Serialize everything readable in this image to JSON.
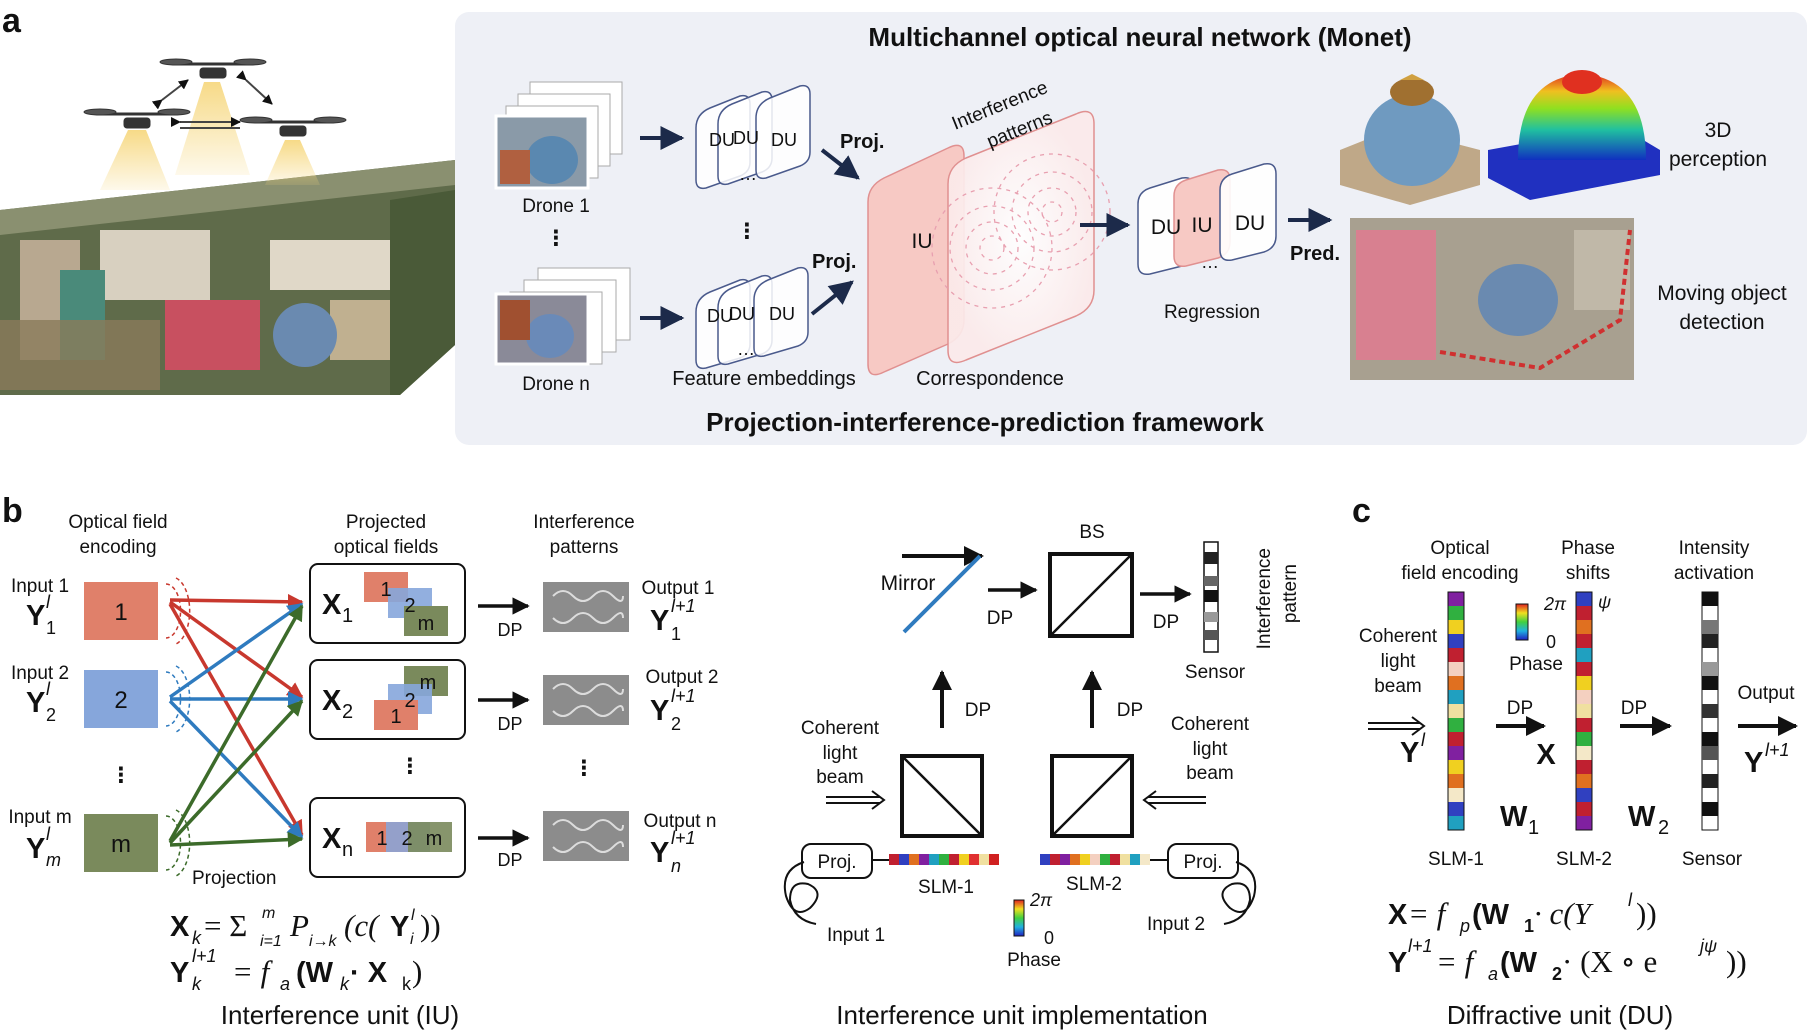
{
  "panels": {
    "a": "a",
    "b": "b",
    "c": "c"
  },
  "panel_a": {
    "title": "Multichannel optical neural network (Monet)",
    "subtitle": "Projection-interference-prediction framework",
    "drone_1": "Drone 1",
    "drone_n": "Drone n",
    "du": "DU",
    "iu": "IU",
    "proj": "Proj.",
    "pred": "Pred.",
    "interference_patterns_1": "Interference",
    "interference_patterns_2": "patterns",
    "feature_embeddings": "Feature embeddings",
    "correspondence": "Correspondence",
    "regression": "Regression",
    "perception_1": "3D",
    "perception_2": "perception",
    "moving_1": "Moving object",
    "moving_2": "detection",
    "dots": "⋮",
    "ellipsis": "…"
  },
  "panel_b": {
    "col_encoding_1": "Optical field",
    "col_encoding_2": "encoding",
    "col_projected_1": "Projected",
    "col_projected_2": "optical fields",
    "col_interf_1": "Interference",
    "col_interf_2": "patterns",
    "inputs": [
      {
        "label": "Input 1",
        "sym": "Y",
        "sub": "1",
        "block": "1",
        "color": "#e0806a"
      },
      {
        "label": "Input 2",
        "sym": "Y",
        "sub": "2",
        "block": "2",
        "color": "#86a6db"
      },
      {
        "label": "Input m",
        "sym": "Y",
        "sub": "m",
        "block": "m",
        "color": "#7a8a5c"
      }
    ],
    "sup_l": "l",
    "sup_l1": "l+1",
    "outputs": [
      {
        "label": "Output 1",
        "sub": "1"
      },
      {
        "label": "Output 2",
        "sub": "2"
      },
      {
        "label": "Output n",
        "sub": "n"
      }
    ],
    "x_labels": [
      {
        "sym": "X",
        "sub": "1"
      },
      {
        "sym": "X",
        "sub": "2"
      },
      {
        "sym": "X",
        "sub": "n"
      }
    ],
    "stack_labels": {
      "one": "1",
      "two": "2",
      "m": "m"
    },
    "dp": "DP",
    "projection": "Projection",
    "eq1_lhs": "X",
    "eq1_k": "k",
    "eq1_rest": "= Σ",
    "eq1_sub": "i=1",
    "eq1_sup": "m",
    "eq1_p": "P",
    "eq1_pik": "i→k",
    "eq1_c": "(c(",
    "eq1_y": "Y",
    "eq1_i": "i",
    "eq1_l": "l",
    "eq1_close": "))",
    "eq2_lhs": "Y",
    "eq2_k": "k",
    "eq2_sup": "l+1",
    "eq2_eq": "= f",
    "eq2_a": "a",
    "eq2_paren": "(W",
    "eq2_k2": "k",
    "eq2_dot": " · X",
    "eq2_kk": "k",
    "eq2_close": ")",
    "caption": "Interference unit (IU)"
  },
  "panel_impl": {
    "mirror": "Mirror",
    "bs": "BS",
    "dp": "DP",
    "sensor": "Sensor",
    "interference_1": "Interference",
    "interference_2": "pattern",
    "coherent_1": "Coherent",
    "coherent_2": "light",
    "coherent_3": "beam",
    "proj": "Proj.",
    "slm1": "SLM-1",
    "slm2": "SLM-2",
    "input1": "Input 1",
    "input2": "Input 2",
    "phase": "Phase",
    "two_pi": "2π",
    "zero": "0",
    "caption": "Interference unit implementation"
  },
  "panel_c": {
    "col_encoding_1": "Optical",
    "col_encoding_2": "field encoding",
    "col_phase_1": "Phase",
    "col_phase_2": "shifts",
    "col_intensity_1": "Intensity",
    "col_intensity_2": "activation",
    "coherent_1": "Coherent",
    "coherent_2": "light",
    "coherent_3": "beam",
    "y_in": "Y",
    "sup_l": "l",
    "sup_l1": "l+1",
    "x": "X",
    "w1": "W",
    "w1_sub": "1",
    "w2": "W",
    "w2_sub": "2",
    "dp": "DP",
    "output": "Output",
    "two_pi": "2π",
    "zero": "0",
    "psi": "ψ",
    "phase": "Phase",
    "slm1": "SLM-1",
    "slm2": "SLM-2",
    "sensor": "Sensor",
    "eq1_x": "X",
    "eq1_eq": " = f",
    "eq1_p": "p",
    "eq1_open": " (W",
    "eq1_w1": "1",
    "eq1_mid": " · c(Y",
    "eq1_l": "l",
    "eq1_close": "))",
    "eq2_y": "Y",
    "eq2_sup": "l+1",
    "eq2_eq": " = f",
    "eq2_a": "a",
    "eq2_open": " (W",
    "eq2_w2": "2",
    "eq2_mid": " · (X ∘ e",
    "eq2_exp": "jψ",
    "eq2_close": "))",
    "caption": "Diffractive unit (DU)"
  },
  "colors": {
    "panel_bg": "#eef0f6",
    "red": "#c8382e",
    "blue": "#2f7bbf",
    "green": "#3c6b2a",
    "iu_fill": "#f7c9c4",
    "du_stroke": "#4a5a8c",
    "arrow": "#1c2a4a"
  }
}
